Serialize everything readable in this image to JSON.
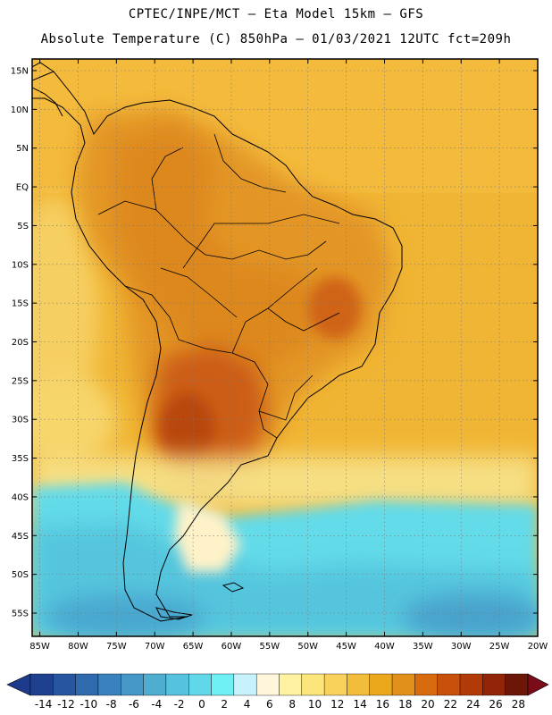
{
  "header": {
    "line1": "CPTEC/INPE/MCT —  Eta Model 15km — GFS",
    "line2": "Absolute Temperature (C) 850hPa — 01/03/2021 12UTC fct=209h"
  },
  "axes": {
    "lat_labels": [
      "15N",
      "10N",
      "5N",
      "EQ",
      "5S",
      "10S",
      "15S",
      "20S",
      "25S",
      "30S",
      "35S",
      "40S",
      "45S",
      "50S",
      "55S"
    ],
    "lon_labels": [
      "85W",
      "80W",
      "75W",
      "70W",
      "65W",
      "60W",
      "55W",
      "50W",
      "45W",
      "40W",
      "35W",
      "30W",
      "25W",
      "20W"
    ],
    "lat_values": [
      15,
      10,
      5,
      0,
      -5,
      -10,
      -15,
      -20,
      -25,
      -30,
      -35,
      -40,
      -45,
      -50,
      -55
    ],
    "lon_values": [
      -85,
      -80,
      -75,
      -70,
      -65,
      -60,
      -55,
      -50,
      -45,
      -40,
      -35,
      -30,
      -25,
      -20
    ],
    "lat_range": [
      -58,
      16.5
    ],
    "lon_range": [
      -86,
      -20
    ],
    "grid": "dotted"
  },
  "colorbar": {
    "labels": [
      "-14",
      "-12",
      "-10",
      "-8",
      "-6",
      "-4",
      "-2",
      "0",
      "2",
      "4",
      "6",
      "8",
      "10",
      "12",
      "14",
      "16",
      "18",
      "20",
      "22",
      "24",
      "26",
      "28"
    ],
    "colors": [
      "#1f3f8f",
      "#28559f",
      "#2f6aae",
      "#3a82bd",
      "#4597c5",
      "#4fadd0",
      "#56c3de",
      "#61d8ea",
      "#6ff0f5",
      "#c8f2fb",
      "#fff6dc",
      "#fff2a0",
      "#fce57a",
      "#f8d25a",
      "#f2bd3a",
      "#eba81d",
      "#e2901c",
      "#d96b0f",
      "#c9500a",
      "#b23a08",
      "#922407",
      "#6b1606"
    ],
    "under_color": "#1e3a8a",
    "over_color": "#7a0c1a"
  }
}
